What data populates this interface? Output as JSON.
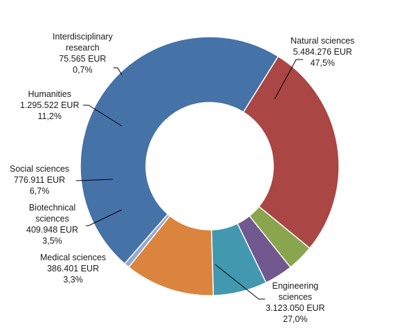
{
  "chart_data": {
    "type": "pie",
    "variant": "donut",
    "start_slice": "Natural sciences",
    "slices": [
      {
        "name": "Natural sciences",
        "value": 5484276,
        "value_label": "5.484.276 EUR",
        "percent": 47.5,
        "percent_label": "47,5%",
        "color": "#4572A7"
      },
      {
        "name": "Engineering sciences",
        "value": 3123050,
        "value_label": "3.123.050 EUR",
        "percent": 27.0,
        "percent_label": "27,0%",
        "color": "#AA4643"
      },
      {
        "name": "Medical sciences",
        "value": 386401,
        "value_label": "386.401 EUR",
        "percent": 3.3,
        "percent_label": "3,3%",
        "color": "#89A54E"
      },
      {
        "name": "Biotechnical sciences",
        "value": 409948,
        "value_label": "409.948 EUR",
        "percent": 3.5,
        "percent_label": "3,5%",
        "color": "#71588F"
      },
      {
        "name": "Social sciences",
        "value": 776911,
        "value_label": "776.911 EUR",
        "percent": 6.7,
        "percent_label": "6,7%",
        "color": "#4198AF"
      },
      {
        "name": "Humanities",
        "value": 1295522,
        "value_label": "1.295.522 EUR",
        "percent": 11.2,
        "percent_label": "11,2%",
        "color": "#DB843D"
      },
      {
        "name": "Interdisciplinary research",
        "value": 75565,
        "value_label": "75.565 EUR",
        "percent": 0.7,
        "percent_label": "0,7%",
        "color": "#93A9CF"
      }
    ],
    "labels": [
      {
        "lines": [
          "Natural sciences",
          "5.484.276 EUR",
          "47,5%"
        ]
      },
      {
        "lines": [
          "Engineering",
          "sciences",
          "3.123.050 EUR",
          "27,0%"
        ]
      },
      {
        "lines": [
          "Medical sciences",
          "386.401 EUR",
          "3,3%"
        ]
      },
      {
        "lines": [
          "Biotechnical",
          "sciences",
          "409.948 EUR",
          "3,5%"
        ]
      },
      {
        "lines": [
          "Social sciences",
          "776.911 EUR",
          "6,7%"
        ]
      },
      {
        "lines": [
          "Humanities",
          "1.295.522 EUR",
          "11,2%"
        ]
      },
      {
        "lines": [
          "Interdisciplinary",
          "research",
          "75.565 EUR",
          "0,7%"
        ]
      }
    ],
    "legend": "none"
  }
}
